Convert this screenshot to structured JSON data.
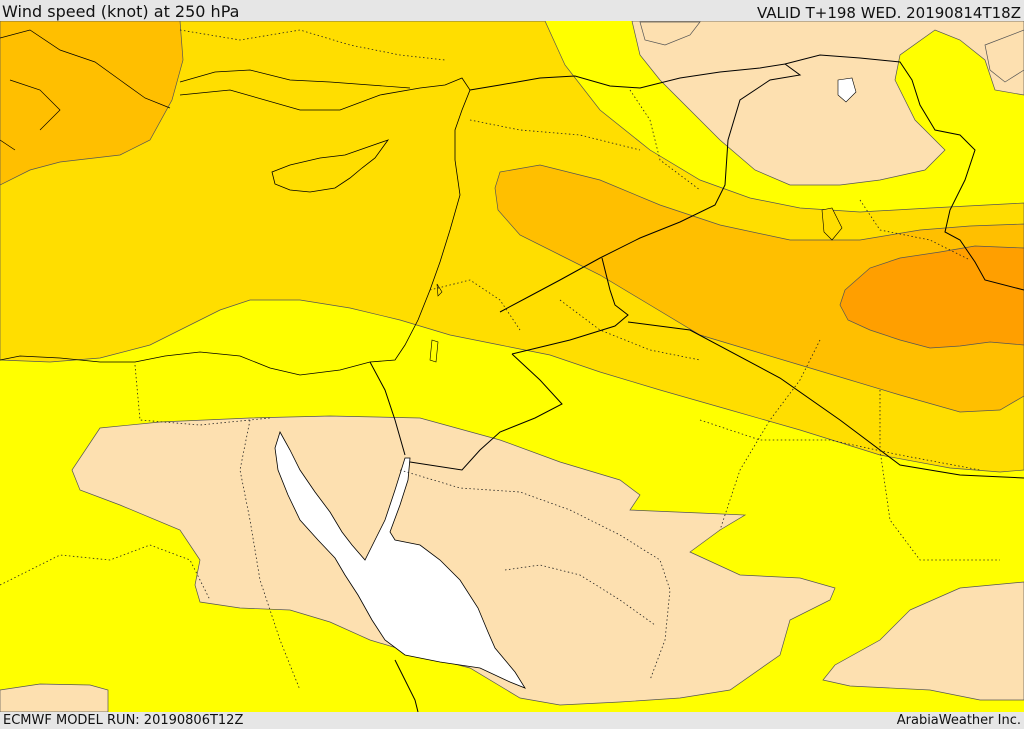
{
  "header": {
    "title": "Wind speed (knot) at 250 hPa",
    "valid": "VALID T+198 WED. 20190814T18Z"
  },
  "footer": {
    "model_run": "ECMWF MODEL RUN: 20190806T12Z",
    "credit": "ArabiaWeather Inc."
  },
  "map": {
    "colors": {
      "light_wind": "#fde0b0",
      "band_yellow": "#ffff00",
      "band_gold": "#ffde00",
      "band_amber": "#ffbf00",
      "band_orange": "#ff9f00",
      "sea_water": "#ffffff",
      "border_line": "#000000"
    }
  }
}
